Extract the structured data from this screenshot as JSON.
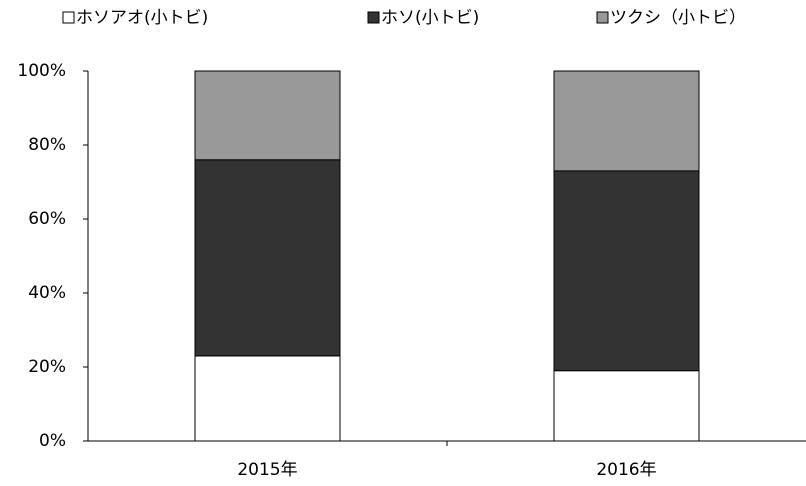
{
  "chart_data": {
    "type": "stacked_bar",
    "categories": [
      "2015年",
      "2016年"
    ],
    "series": [
      {
        "name": "ホソアオ(小トビ)",
        "color": "#ffffff",
        "values": [
          23,
          19
        ]
      },
      {
        "name": "ホソ(小トビ)",
        "color": "#333333",
        "values": [
          53,
          54
        ]
      },
      {
        "name": "ツクシ（小トビ）",
        "color": "#999999",
        "values": [
          24,
          27
        ]
      }
    ],
    "ylim": [
      0,
      100
    ],
    "yticks": [
      {
        "value": 0,
        "label": "0%"
      },
      {
        "value": 20,
        "label": "20%"
      },
      {
        "value": 40,
        "label": "40%"
      },
      {
        "value": 60,
        "label": "60%"
      },
      {
        "value": 80,
        "label": "80%"
      },
      {
        "value": 100,
        "label": "100%"
      }
    ],
    "legend": "top"
  }
}
